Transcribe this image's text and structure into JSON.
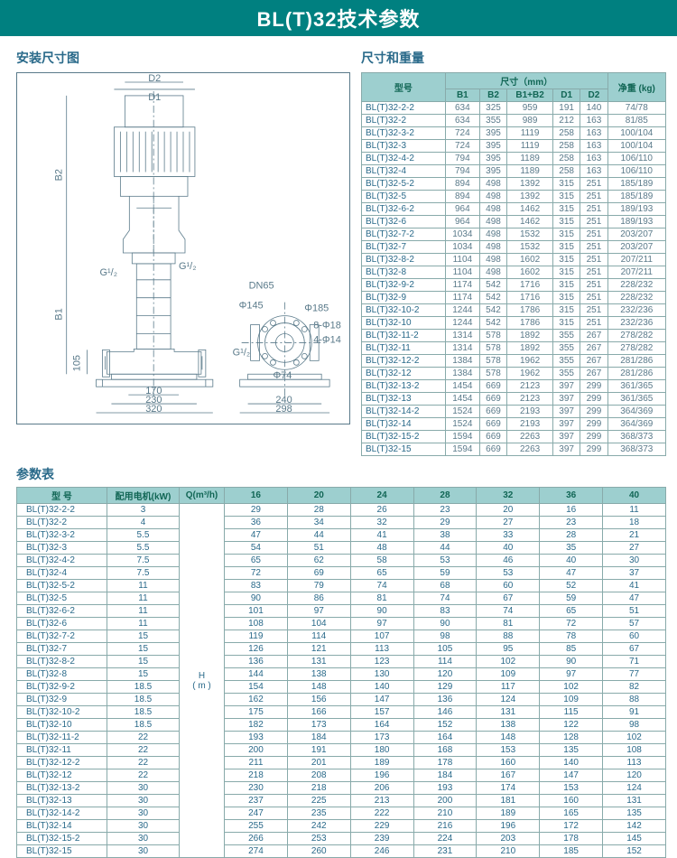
{
  "title": "BL(T)32技术参数",
  "labels": {
    "install": "安装尺寸图",
    "size_weight": "尺寸和重量",
    "params": "参数表",
    "model": "型号",
    "dim_mm": "尺寸（mm）",
    "weight": "净重 (kg)",
    "motor": "配用电机(kW)",
    "flow": "Q(m³/h)",
    "head": "H\n( m )",
    "model2": "型 号"
  },
  "drawing": {
    "D1": "D1",
    "D2": "D2",
    "B1": "B1",
    "B2": "B2",
    "G12a": "G¹/₂",
    "G12b": "G¹/₂",
    "G12c": "G¹/₂",
    "DN65": "DN65",
    "p145": "Φ145",
    "p185": "Φ185",
    "p8_18": "8-Φ18",
    "p4_14": "4-Φ14",
    "p74": "Φ74",
    "d105": "105",
    "d170": "170",
    "d230": "230",
    "d320": "320",
    "d240": "240",
    "d298": "298"
  },
  "size_cols": [
    "B1",
    "B2",
    "B1+B2",
    "D1",
    "D2"
  ],
  "size_rows": [
    [
      "BL(T)32-2-2",
      "634",
      "325",
      "959",
      "191",
      "140",
      "74/78"
    ],
    [
      "BL(T)32-2",
      "634",
      "355",
      "989",
      "212",
      "163",
      "81/85"
    ],
    [
      "BL(T)32-3-2",
      "724",
      "395",
      "1119",
      "258",
      "163",
      "100/104"
    ],
    [
      "BL(T)32-3",
      "724",
      "395",
      "1119",
      "258",
      "163",
      "100/104"
    ],
    [
      "BL(T)32-4-2",
      "794",
      "395",
      "1189",
      "258",
      "163",
      "106/110"
    ],
    [
      "BL(T)32-4",
      "794",
      "395",
      "1189",
      "258",
      "163",
      "106/110"
    ],
    [
      "BL(T)32-5-2",
      "894",
      "498",
      "1392",
      "315",
      "251",
      "185/189"
    ],
    [
      "BL(T)32-5",
      "894",
      "498",
      "1392",
      "315",
      "251",
      "185/189"
    ],
    [
      "BL(T)32-6-2",
      "964",
      "498",
      "1462",
      "315",
      "251",
      "189/193"
    ],
    [
      "BL(T)32-6",
      "964",
      "498",
      "1462",
      "315",
      "251",
      "189/193"
    ],
    [
      "BL(T)32-7-2",
      "1034",
      "498",
      "1532",
      "315",
      "251",
      "203/207"
    ],
    [
      "BL(T)32-7",
      "1034",
      "498",
      "1532",
      "315",
      "251",
      "203/207"
    ],
    [
      "BL(T)32-8-2",
      "1104",
      "498",
      "1602",
      "315",
      "251",
      "207/211"
    ],
    [
      "BL(T)32-8",
      "1104",
      "498",
      "1602",
      "315",
      "251",
      "207/211"
    ],
    [
      "BL(T)32-9-2",
      "1174",
      "542",
      "1716",
      "315",
      "251",
      "228/232"
    ],
    [
      "BL(T)32-9",
      "1174",
      "542",
      "1716",
      "315",
      "251",
      "228/232"
    ],
    [
      "BL(T)32-10-2",
      "1244",
      "542",
      "1786",
      "315",
      "251",
      "232/236"
    ],
    [
      "BL(T)32-10",
      "1244",
      "542",
      "1786",
      "315",
      "251",
      "232/236"
    ],
    [
      "BL(T)32-11-2",
      "1314",
      "578",
      "1892",
      "355",
      "267",
      "278/282"
    ],
    [
      "BL(T)32-11",
      "1314",
      "578",
      "1892",
      "355",
      "267",
      "278/282"
    ],
    [
      "BL(T)32-12-2",
      "1384",
      "578",
      "1962",
      "355",
      "267",
      "281/286"
    ],
    [
      "BL(T)32-12",
      "1384",
      "578",
      "1962",
      "355",
      "267",
      "281/286"
    ],
    [
      "BL(T)32-13-2",
      "1454",
      "669",
      "2123",
      "397",
      "299",
      "361/365"
    ],
    [
      "BL(T)32-13",
      "1454",
      "669",
      "2123",
      "397",
      "299",
      "361/365"
    ],
    [
      "BL(T)32-14-2",
      "1524",
      "669",
      "2193",
      "397",
      "299",
      "364/369"
    ],
    [
      "BL(T)32-14",
      "1524",
      "669",
      "2193",
      "397",
      "299",
      "364/369"
    ],
    [
      "BL(T)32-15-2",
      "1594",
      "669",
      "2263",
      "397",
      "299",
      "368/373"
    ],
    [
      "BL(T)32-15",
      "1594",
      "669",
      "2263",
      "397",
      "299",
      "368/373"
    ]
  ],
  "q_cols": [
    "16",
    "20",
    "24",
    "28",
    "32",
    "36",
    "40"
  ],
  "param_rows": [
    [
      "BL(T)32-2-2",
      "3",
      "29",
      "28",
      "26",
      "23",
      "20",
      "16",
      "11"
    ],
    [
      "BL(T)32-2",
      "4",
      "36",
      "34",
      "32",
      "29",
      "27",
      "23",
      "18"
    ],
    [
      "BL(T)32-3-2",
      "5.5",
      "47",
      "44",
      "41",
      "38",
      "33",
      "28",
      "21"
    ],
    [
      "BL(T)32-3",
      "5.5",
      "54",
      "51",
      "48",
      "44",
      "40",
      "35",
      "27"
    ],
    [
      "BL(T)32-4-2",
      "7.5",
      "65",
      "62",
      "58",
      "53",
      "46",
      "40",
      "30"
    ],
    [
      "BL(T)32-4",
      "7.5",
      "72",
      "69",
      "65",
      "59",
      "53",
      "47",
      "37"
    ],
    [
      "BL(T)32-5-2",
      "11",
      "83",
      "79",
      "74",
      "68",
      "60",
      "52",
      "41"
    ],
    [
      "BL(T)32-5",
      "11",
      "90",
      "86",
      "81",
      "74",
      "67",
      "59",
      "47"
    ],
    [
      "BL(T)32-6-2",
      "11",
      "101",
      "97",
      "90",
      "83",
      "74",
      "65",
      "51"
    ],
    [
      "BL(T)32-6",
      "11",
      "108",
      "104",
      "97",
      "90",
      "81",
      "72",
      "57"
    ],
    [
      "BL(T)32-7-2",
      "15",
      "119",
      "114",
      "107",
      "98",
      "88",
      "78",
      "60"
    ],
    [
      "BL(T)32-7",
      "15",
      "126",
      "121",
      "113",
      "105",
      "95",
      "85",
      "67"
    ],
    [
      "BL(T)32-8-2",
      "15",
      "136",
      "131",
      "123",
      "114",
      "102",
      "90",
      "71"
    ],
    [
      "BL(T)32-8",
      "15",
      "144",
      "138",
      "130",
      "120",
      "109",
      "97",
      "77"
    ],
    [
      "BL(T)32-9-2",
      "18.5",
      "154",
      "148",
      "140",
      "129",
      "117",
      "102",
      "82"
    ],
    [
      "BL(T)32-9",
      "18.5",
      "162",
      "156",
      "147",
      "136",
      "124",
      "109",
      "88"
    ],
    [
      "BL(T)32-10-2",
      "18.5",
      "175",
      "166",
      "157",
      "146",
      "131",
      "115",
      "91"
    ],
    [
      "BL(T)32-10",
      "18.5",
      "182",
      "173",
      "164",
      "152",
      "138",
      "122",
      "98"
    ],
    [
      "BL(T)32-11-2",
      "22",
      "193",
      "184",
      "173",
      "164",
      "148",
      "128",
      "102"
    ],
    [
      "BL(T)32-11",
      "22",
      "200",
      "191",
      "180",
      "168",
      "153",
      "135",
      "108"
    ],
    [
      "BL(T)32-12-2",
      "22",
      "211",
      "201",
      "189",
      "178",
      "160",
      "140",
      "113"
    ],
    [
      "BL(T)32-12",
      "22",
      "218",
      "208",
      "196",
      "184",
      "167",
      "147",
      "120"
    ],
    [
      "BL(T)32-13-2",
      "30",
      "230",
      "218",
      "206",
      "193",
      "174",
      "153",
      "124"
    ],
    [
      "BL(T)32-13",
      "30",
      "237",
      "225",
      "213",
      "200",
      "181",
      "160",
      "131"
    ],
    [
      "BL(T)32-14-2",
      "30",
      "247",
      "235",
      "222",
      "210",
      "189",
      "165",
      "135"
    ],
    [
      "BL(T)32-14",
      "30",
      "255",
      "242",
      "229",
      "216",
      "196",
      "172",
      "142"
    ],
    [
      "BL(T)32-15-2",
      "30",
      "266",
      "253",
      "239",
      "224",
      "203",
      "178",
      "145"
    ],
    [
      "BL(T)32-15",
      "30",
      "274",
      "260",
      "246",
      "231",
      "210",
      "185",
      "152"
    ]
  ],
  "colors": {
    "teal": "#008080",
    "header_bg": "#9dcfcf",
    "border": "#88aaaa",
    "text": "#5a7a8a"
  }
}
